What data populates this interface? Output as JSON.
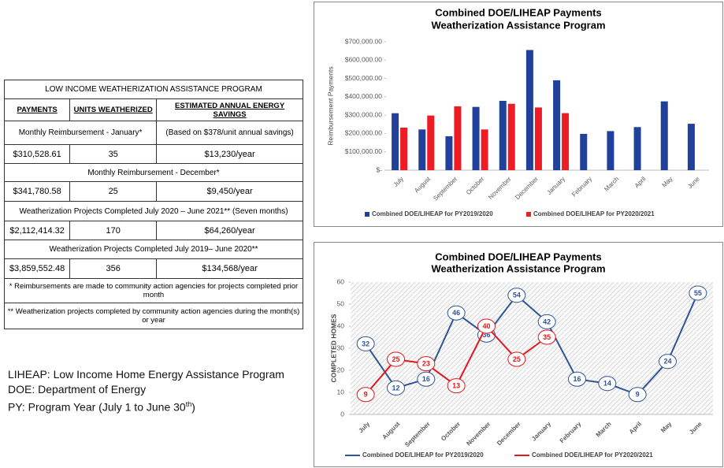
{
  "table": {
    "title": "LOW INCOME WEATHERIZATION ASSISTANCE PROGRAM",
    "headers": [
      "PAYMENTS",
      "UNITS WEATHERIZED",
      "ESTIMATED ANNUAL ENERGY SAVINGS"
    ],
    "sections": [
      {
        "heading": "Monthly Reimbursement - January*",
        "note": "(Based on $378/unit annual savings)",
        "cells": [
          "$310,528.61",
          "35",
          "$13,230/year"
        ]
      },
      {
        "heading": "Monthly Reimbursement - December*",
        "cells": [
          "$341,780.58",
          "25",
          "$9,450/year"
        ]
      },
      {
        "heading": "Weatherization Projects Completed July 2020 – June 2021** (Seven months)",
        "cells": [
          "$2,112,414.32",
          "170",
          "$64,260/year"
        ]
      },
      {
        "heading": "Weatherization Projects Completed July 2019– June 2020**",
        "cells": [
          "$3,859,552.48",
          "356",
          "$134,568/year"
        ]
      }
    ],
    "footnotes": [
      "* Reimbursements are made to community action agencies for projects completed prior month",
      "** Weatherization projects completed by community action agencies during the month(s) or year"
    ]
  },
  "definitions": [
    "LIHEAP: Low Income Home Energy Assistance Program",
    "DOE: Department of Energy",
    {
      "parts": [
        "PY: Program Year (July 1 to June 30",
        "th",
        ")"
      ]
    }
  ],
  "chart_data": [
    {
      "type": "bar",
      "title": "Combined DOE/LIHEAP Payments",
      "subtitle": "Weatherization Assistance Program",
      "y_label": "Reimbursement Payments",
      "categories": [
        "July",
        "August",
        "September",
        "October",
        "November",
        "December",
        "January",
        "February",
        "March",
        "April",
        "May",
        "June"
      ],
      "series": [
        {
          "name": "Combined DOE/LIHEAP for PY2019/2020",
          "color": "#21409a",
          "values": [
            310528.61,
            222000,
            185000,
            345000,
            378000,
            655000,
            490000,
            198000,
            213000,
            235000,
            375000,
            253000
          ]
        },
        {
          "name": "Combined DOE/LIHEAP for PY2020/2021",
          "color": "#ee1c24",
          "values": [
            232000,
            298000,
            348000,
            222000,
            362000,
            341780.58,
            311000,
            null,
            null,
            null,
            null,
            null
          ]
        }
      ],
      "ylim": [
        0,
        700000
      ],
      "yticks": [
        {
          "value": 0,
          "label": "$-"
        },
        {
          "value": 100000,
          "label": "$100,000.00"
        },
        {
          "value": 200000,
          "label": "$200,000.00"
        },
        {
          "value": 300000,
          "label": "$300,000.00"
        },
        {
          "value": 400000,
          "label": "$400,000.00"
        },
        {
          "value": 500000,
          "label": "$500,000.00"
        },
        {
          "value": 600000,
          "label": "$600,000.00"
        },
        {
          "value": 700000,
          "label": "$700,000.00"
        }
      ],
      "grid": false,
      "legend": "bottom"
    },
    {
      "type": "line",
      "title": "Combined DOE/LIHEAP Payments",
      "subtitle": "Weatherization Assistance Program",
      "y_label": "COMPLETED HOMES",
      "categories": [
        "July",
        "August",
        "September",
        "October",
        "November",
        "December",
        "January",
        "February",
        "March",
        "April",
        "May",
        "June"
      ],
      "series": [
        {
          "name": "Combined DOE/LIHEAP for PY2019/2020",
          "color": "#2f5597",
          "values": [
            32,
            12,
            16,
            46,
            36,
            54,
            42,
            16,
            14,
            9,
            24,
            55
          ]
        },
        {
          "name": "Combined DOE/LIHEAP for PY2020/2021",
          "color": "#e3171c",
          "values": [
            9,
            25,
            23,
            13,
            40,
            25,
            35,
            null,
            null,
            null,
            null,
            null
          ]
        }
      ],
      "ylim": [
        0,
        60
      ],
      "yticks": [
        0,
        10,
        20,
        30,
        40,
        50,
        60
      ],
      "grid": false,
      "legend": "bottom"
    }
  ]
}
